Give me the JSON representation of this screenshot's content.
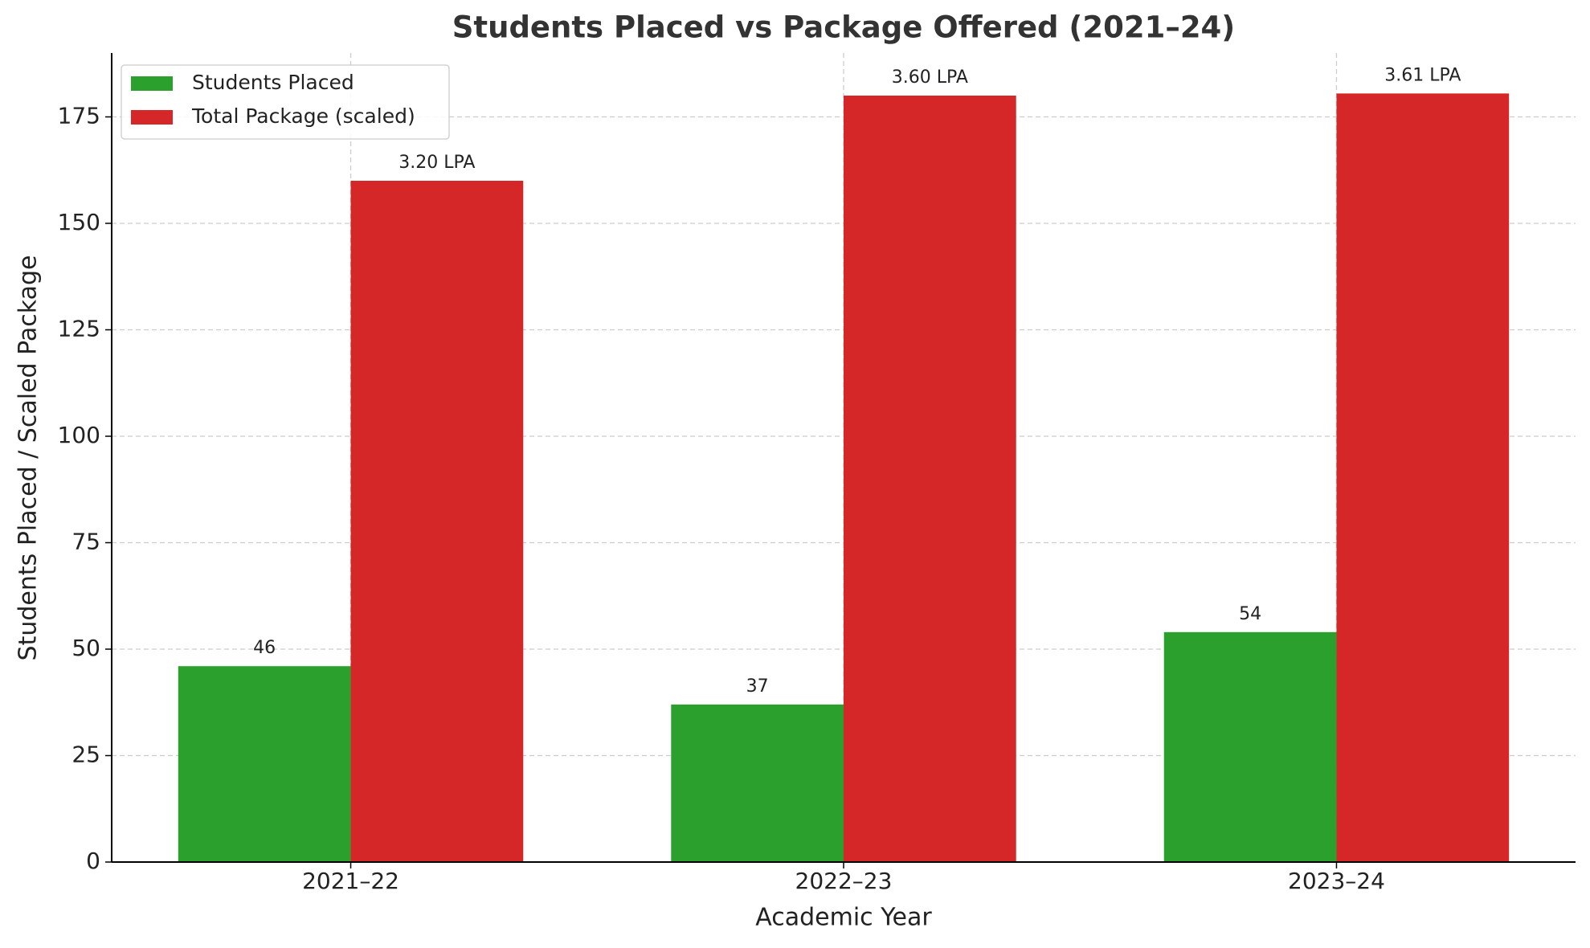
{
  "chart_data": {
    "type": "bar",
    "title": "Students Placed vs Package Offered (2021–24)",
    "x_label": "Academic Year",
    "y_label": "Students Placed / Scaled Package",
    "categories": [
      "2021–22",
      "2022–23",
      "2023–24"
    ],
    "series": [
      {
        "name": "Students Placed",
        "color": "#2ca02c",
        "values": [
          46,
          37,
          54
        ]
      },
      {
        "name": "Total Package (scaled)",
        "color": "#d62728",
        "values": [
          160,
          180,
          180.5
        ],
        "value_labels": [
          "3.20 LPA",
          "3.60 LPA",
          "3.61 LPA"
        ]
      }
    ],
    "ylim": [
      0,
      190
    ],
    "yticks": [
      0,
      25,
      50,
      75,
      100,
      125,
      150,
      175
    ],
    "grid": true,
    "legend": "upper left"
  }
}
